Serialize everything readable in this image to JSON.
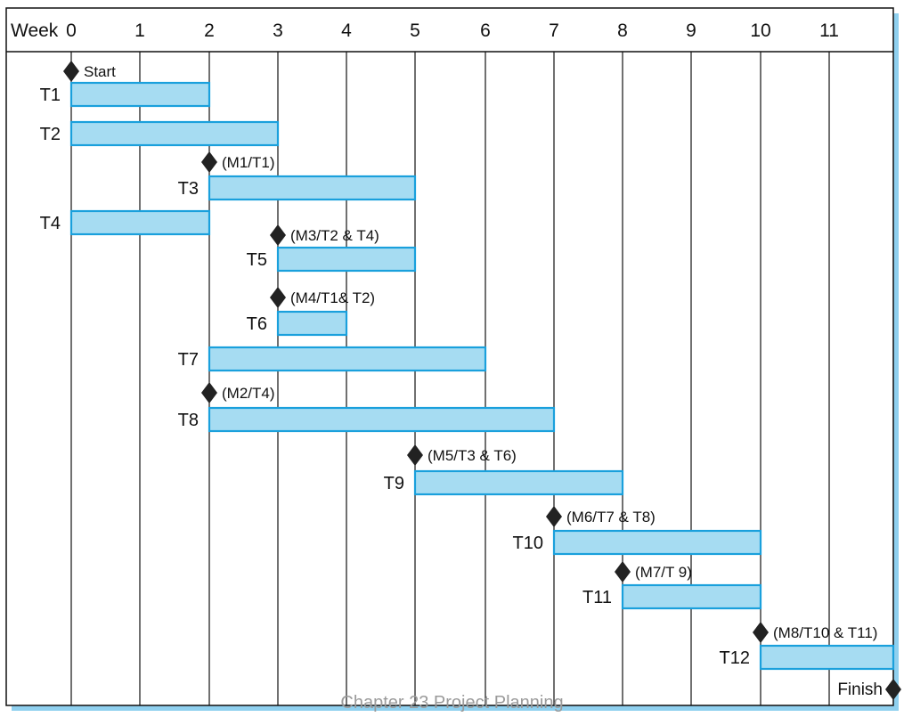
{
  "colors": {
    "bar_fill": "#a6dcf2",
    "bar_stroke": "#1aa0dc",
    "milestone": "#222222",
    "grid": "#111111",
    "shadow": "#8fd0ef"
  },
  "chart_data": {
    "type": "gantt",
    "axis_label": "Week",
    "weeks": [
      "0",
      "1",
      "2",
      "3",
      "4",
      "5",
      "6",
      "7",
      "8",
      "9",
      "10",
      "11"
    ],
    "tasks": [
      {
        "name": "T1",
        "start": 0,
        "end": 2
      },
      {
        "name": "T2",
        "start": 0,
        "end": 3
      },
      {
        "name": "T3",
        "start": 2,
        "end": 5
      },
      {
        "name": "T4",
        "start": 0,
        "end": 2
      },
      {
        "name": "T5",
        "start": 3,
        "end": 5
      },
      {
        "name": "T6",
        "start": 3,
        "end": 4
      },
      {
        "name": "T7",
        "start": 2,
        "end": 6
      },
      {
        "name": "T8",
        "start": 2,
        "end": 7
      },
      {
        "name": "T9",
        "start": 5,
        "end": 8
      },
      {
        "name": "T10",
        "start": 7,
        "end": 10
      },
      {
        "name": "T11",
        "start": 8,
        "end": 10
      },
      {
        "name": "T12",
        "start": 10,
        "end": 12
      }
    ],
    "milestones": [
      {
        "label": "Start",
        "week": 0,
        "before_task": "T1"
      },
      {
        "label": "(M1/T1)",
        "week": 2,
        "before_task": "T3"
      },
      {
        "label": "(M3/T2 & T4)",
        "week": 3,
        "before_task": "T5"
      },
      {
        "label": "(M4/T1& T2)",
        "week": 3,
        "before_task": "T6"
      },
      {
        "label": "(M2/T4)",
        "week": 2,
        "before_task": "T8"
      },
      {
        "label": "(M5/T3 & T6)",
        "week": 5,
        "before_task": "T9"
      },
      {
        "label": "(M6/T7 & T8)",
        "week": 7,
        "before_task": "T10"
      },
      {
        "label": "(M7/T 9)",
        "week": 8,
        "before_task": "T11"
      },
      {
        "label": "(M8/T10 & T11)",
        "week": 10,
        "before_task": "T12"
      },
      {
        "label": "Finish",
        "week": 12,
        "before_task": null
      }
    ]
  },
  "footer": "Chapter 23 Project Planning"
}
